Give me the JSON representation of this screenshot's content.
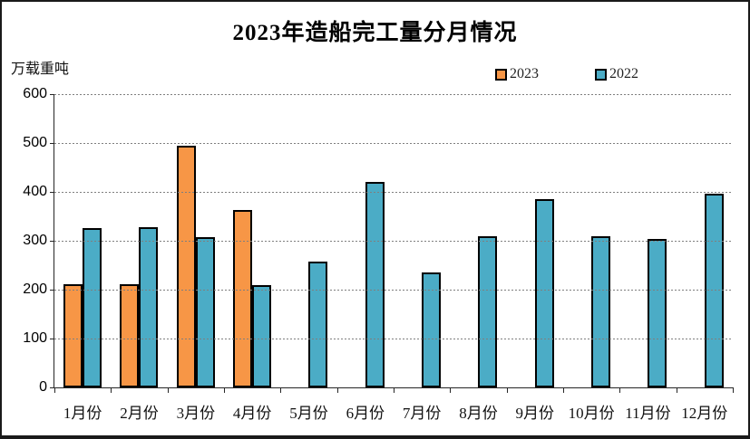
{
  "chart_data": {
    "type": "bar",
    "title": "2023年造船完工量分月情况",
    "unit_label": "万载重吨",
    "categories": [
      "1月份",
      "2月份",
      "3月份",
      "4月份",
      "5月份",
      "6月份",
      "7月份",
      "8月份",
      "9月份",
      "10月份",
      "11月份",
      "12月份"
    ],
    "series": [
      {
        "name": "2023",
        "color": "#F79646",
        "values": [
          212,
          212,
          494,
          363,
          null,
          null,
          null,
          null,
          null,
          null,
          null,
          null
        ]
      },
      {
        "name": "2022",
        "color": "#4BACC6",
        "values": [
          326,
          327,
          308,
          210,
          257,
          421,
          235,
          310,
          386,
          309,
          304,
          396
        ]
      }
    ],
    "ylim": [
      0,
      600
    ],
    "yticks": [
      600,
      500,
      400,
      300,
      200,
      100,
      0
    ],
    "grid": "horizontal-dotted",
    "legend_position": "top"
  }
}
